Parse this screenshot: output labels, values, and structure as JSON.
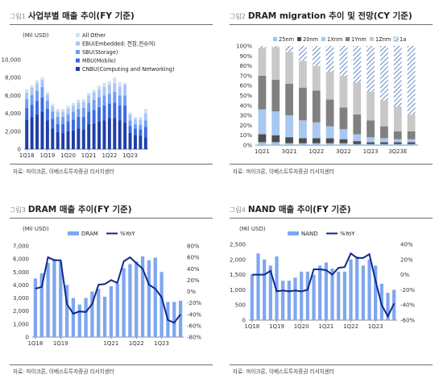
{
  "colors": {
    "cnbu": "#1f3fa6",
    "mbu": "#3b6ae0",
    "sbu": "#6f9df2",
    "ebu": "#a8c5f5",
    "allother": "#d2e0f8",
    "dram_bar": "#7fa6f0",
    "yoy_line": "#0c2a8c",
    "m25": "#9dc3ec",
    "m20": "#4e4e4e",
    "m1x": "#a8c8f0",
    "m1y": "#808080",
    "m1z": "#c8c8c8",
    "m1a": "#3a6bb6"
  },
  "panels": [
    {
      "fig": "그림1",
      "title": "사업부별 매출 추이(FY 기준)",
      "unit": "(Mil USD)",
      "source": "자료: 마이크론, 이베스트투자증권 리서치센터"
    },
    {
      "fig": "그림2",
      "title": "DRAM migration 추이 및 전망(CY 기준)",
      "unit": "",
      "source": "자료: 마이크론, 이베스트투자증권 리서치센터"
    },
    {
      "fig": "그림3",
      "title": "DRAM 매출 추이(FY 기준)",
      "unit": "(Mil USD)",
      "source": "자료: 마이크론, 이베스트투자증권 리서치센터"
    },
    {
      "fig": "그림4",
      "title": "NAND 매출 추이(FY 기준)",
      "unit": "(Mil USD)",
      "source": "자료: 마이크론, 이베스트투자증권 리서치센터"
    }
  ],
  "chart_data": [
    {
      "type": "bar",
      "stacked": true,
      "title": "사업부별 매출 추이(FY 기준)",
      "ylabel": "(Mil USD)",
      "ylim": [
        0,
        10000
      ],
      "yticks": [
        "0",
        "2,000",
        "4,000",
        "6,000",
        "8,000",
        "10,000"
      ],
      "categories": [
        "1Q18",
        "2Q18",
        "3Q18",
        "4Q18",
        "1Q19",
        "2Q19",
        "3Q19",
        "4Q19",
        "1Q20",
        "2Q20",
        "3Q20",
        "4Q20",
        "1Q21",
        "2Q21",
        "3Q21",
        "4Q21",
        "1Q22",
        "2Q22",
        "3Q22",
        "4Q22",
        "1Q23",
        "2Q23",
        "3Q23",
        "4Q23"
      ],
      "xtick_labels": [
        "1Q18",
        "1Q19",
        "1Q20",
        "1Q21",
        "1Q22",
        "1Q23"
      ],
      "legend": "top-left",
      "series": [
        {
          "name": "CNBU(Computing and Networking)",
          "color": "cnbu",
          "values": [
            3300,
            3600,
            3900,
            4200,
            3200,
            2300,
            1900,
            1800,
            2000,
            2100,
            2300,
            2200,
            2800,
            2900,
            3100,
            3200,
            3500,
            3500,
            3200,
            3000,
            1800,
            1600,
            1500,
            1300
          ]
        },
        {
          "name": "MBU(Mobile)",
          "color": "mbu",
          "values": [
            1300,
            1350,
            1500,
            1600,
            1300,
            1100,
            900,
            1000,
            1100,
            1200,
            1300,
            1400,
            1400,
            1500,
            1600,
            1700,
            1600,
            1700,
            1700,
            1900,
            800,
            700,
            700,
            1200
          ]
        },
        {
          "name": "SBU(Storage)",
          "color": "sbu",
          "values": [
            1000,
            1100,
            1150,
            1150,
            900,
            800,
            800,
            800,
            800,
            900,
            900,
            1000,
            1000,
            1100,
            1100,
            1100,
            1100,
            1200,
            1100,
            1100,
            600,
            500,
            500,
            700
          ]
        },
        {
          "name": "EBU(Embedded: 전장,컨슈머)",
          "color": "ebu",
          "values": [
            700,
            800,
            800,
            800,
            700,
            600,
            600,
            600,
            650,
            650,
            700,
            700,
            800,
            850,
            900,
            950,
            1000,
            1000,
            1000,
            1200,
            700,
            600,
            600,
            800
          ]
        },
        {
          "name": "All Other",
          "color": "allother",
          "values": [
            400,
            300,
            350,
            300,
            300,
            300,
            300,
            300,
            300,
            300,
            350,
            300,
            300,
            300,
            400,
            450,
            400,
            600,
            500,
            200,
            200,
            200,
            300,
            500
          ]
        }
      ]
    },
    {
      "type": "bar",
      "stacked": true,
      "title": "DRAM migration 추이 및 전망(CY 기준)",
      "ylim": [
        0,
        100
      ],
      "yticks": [
        "0%",
        "10%",
        "20%",
        "30%",
        "40%",
        "50%",
        "60%",
        "70%",
        "80%",
        "90%",
        "100%"
      ],
      "categories": [
        "1Q21",
        "2Q21",
        "3Q21",
        "4Q21",
        "1Q22",
        "2Q22",
        "3Q22",
        "4Q22",
        "1Q23",
        "2Q23",
        "3Q23E",
        "4Q23E"
      ],
      "xtick_labels": [
        "1Q21",
        "3Q21",
        "1Q22",
        "3Q22",
        "1Q23",
        "3Q23E"
      ],
      "legend": "top",
      "series": [
        {
          "name": "25nm",
          "color": "m25",
          "values": [
            3,
            3,
            2,
            2,
            2,
            2,
            2,
            1,
            1,
            1,
            1,
            1
          ]
        },
        {
          "name": "20nm",
          "color": "m20",
          "values": [
            8,
            7,
            6,
            5,
            5,
            5,
            4,
            3,
            2,
            2,
            2,
            2
          ]
        },
        {
          "name": "1Xnm",
          "color": "m1x",
          "values": [
            25,
            24,
            22,
            18,
            16,
            12,
            10,
            7,
            5,
            4,
            3,
            3
          ]
        },
        {
          "name": "1Ynm",
          "color": "m1y",
          "values": [
            34,
            32,
            32,
            33,
            32,
            27,
            22,
            20,
            17,
            12,
            8,
            8
          ]
        },
        {
          "name": "1Znm",
          "color": "m1z",
          "values": [
            28,
            33,
            32,
            27,
            25,
            28,
            32,
            32,
            29,
            26,
            25,
            17
          ]
        },
        {
          "name": "1a",
          "color": "m1a",
          "values": [
            2,
            1,
            6,
            15,
            20,
            26,
            30,
            37,
            46,
            55,
            61,
            69
          ]
        }
      ]
    },
    {
      "type": "bar",
      "title": "DRAM 매출 추이(FY 기준)",
      "ylabel": "(Mil USD)",
      "ylim": [
        0,
        7000
      ],
      "y2lim": [
        -80,
        80
      ],
      "yticks": [
        "0",
        "1,000",
        "2,000",
        "3,000",
        "4,000",
        "5,000",
        "6,000",
        "7,000"
      ],
      "y2ticks": [
        "-80%",
        "-60%",
        "-40%",
        "-20%",
        "0%",
        "20%",
        "40%",
        "60%",
        "80%"
      ],
      "categories": [
        "1Q18",
        "2Q18",
        "3Q18",
        "4Q18",
        "1Q19",
        "2Q19",
        "3Q19",
        "4Q19",
        "1Q20",
        "2Q20",
        "3Q20",
        "4Q20",
        "1Q21",
        "2Q21",
        "3Q21",
        "4Q21",
        "1Q22",
        "2Q22",
        "3Q22",
        "4Q22",
        "1Q23",
        "2Q23",
        "3Q23",
        "4Q23"
      ],
      "xtick_labels": [
        "1Q18",
        "1Q19",
        "1Q21",
        "1Q22",
        "1Q23"
      ],
      "legend": "top",
      "series": [
        {
          "name": "DRAM",
          "axis": "left",
          "values": [
            4500,
            4900,
            5700,
            6000,
            5800,
            4000,
            3000,
            2500,
            3000,
            3500,
            3700,
            3100,
            3900,
            4100,
            5300,
            5600,
            5800,
            6200,
            5900,
            6100,
            5000,
            2700,
            2700,
            2800
          ]
        },
        {
          "name": "%YoY",
          "axis": "right",
          "values": [
            5,
            8,
            60,
            55,
            55,
            -22,
            -39,
            -35,
            -36,
            -22,
            12,
            13,
            20,
            15,
            53,
            60,
            50,
            40,
            12,
            5,
            -10,
            -50,
            -55,
            -40
          ]
        }
      ]
    },
    {
      "type": "bar",
      "title": "NAND 매출 추이(FY 기준)",
      "ylabel": "(Mil USD)",
      "ylim": [
        0,
        2500
      ],
      "y2lim": [
        -60,
        40
      ],
      "yticks": [
        "0",
        "500",
        "1,000",
        "1,500",
        "2,000",
        "2,500"
      ],
      "y2ticks": [
        "-60%",
        "-40%",
        "-20%",
        "0%",
        "20%",
        "40%"
      ],
      "categories": [
        "1Q18",
        "2Q18",
        "3Q18",
        "4Q18",
        "1Q19",
        "2Q19",
        "3Q19",
        "4Q19",
        "1Q20",
        "2Q20",
        "3Q20",
        "4Q20",
        "1Q21",
        "2Q21",
        "3Q21",
        "4Q21",
        "1Q22",
        "2Q22",
        "3Q22",
        "4Q22",
        "1Q23",
        "2Q23",
        "3Q23",
        "4Q23"
      ],
      "xtick_labels": [
        "1Q18",
        "1Q19",
        "1Q20",
        "1Q21",
        "1Q22",
        "1Q23"
      ],
      "legend": "top",
      "series": [
        {
          "name": "NAND",
          "axis": "left",
          "values": [
            1500,
            2200,
            2000,
            1800,
            2100,
            1300,
            1300,
            1400,
            1600,
            1600,
            1500,
            1800,
            1900,
            1700,
            1600,
            1600,
            2000,
            2100,
            1800,
            2000,
            1800,
            1200,
            900,
            1000
          ]
        },
        {
          "name": "%YoY",
          "axis": "right",
          "values": [
            0,
            0,
            0,
            5,
            -22,
            -21,
            -22,
            -21,
            -22,
            -20,
            7,
            7,
            6,
            0,
            9,
            10,
            28,
            22,
            22,
            27,
            -8,
            -40,
            -55,
            -38
          ]
        }
      ]
    }
  ]
}
